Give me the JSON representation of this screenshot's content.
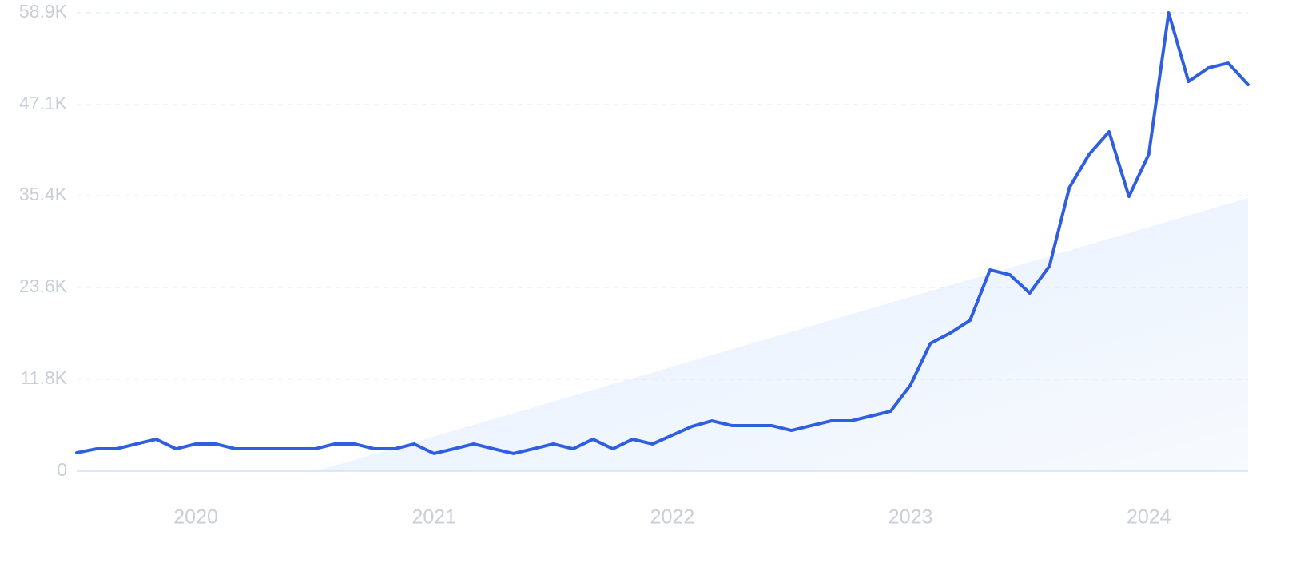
{
  "chart_data": {
    "type": "line",
    "color": "#2f5fe0",
    "categories": [
      null,
      null,
      null,
      null,
      null,
      null,
      "2020",
      null,
      null,
      null,
      null,
      null,
      null,
      null,
      null,
      null,
      null,
      null,
      "2021",
      null,
      null,
      null,
      null,
      null,
      null,
      null,
      null,
      null,
      null,
      null,
      "2022",
      null,
      null,
      null,
      null,
      null,
      null,
      null,
      null,
      null,
      null,
      null,
      "2023",
      null,
      null,
      null,
      null,
      null,
      null,
      null,
      null,
      null,
      null,
      null,
      "2024",
      null,
      null,
      null,
      null,
      null
    ],
    "values": [
      2360,
      2870,
      2870,
      3490,
      4100,
      2870,
      3490,
      3490,
      2870,
      2870,
      2870,
      2870,
      2870,
      3490,
      3490,
      2870,
      2870,
      3490,
      2260,
      2870,
      3490,
      2870,
      2260,
      2870,
      3490,
      2870,
      4100,
      2870,
      4100,
      3490,
      4620,
      5750,
      6460,
      5850,
      5850,
      5850,
      5230,
      5850,
      6460,
      6460,
      7080,
      7700,
      11080,
      16420,
      17750,
      19390,
      25860,
      25240,
      22880,
      26370,
      36420,
      40730,
      43610,
      35290,
      40730,
      58900,
      50070,
      51810,
      52430,
      49660
    ],
    "ylim": [
      0,
      58900
    ],
    "yticks": [
      0,
      {
        "value": 11800,
        "label": "11.8K"
      },
      {
        "value": 23600,
        "label": "23.6K"
      },
      {
        "value": 35400,
        "label": "35.4K"
      },
      {
        "value": 47100,
        "label": "47.1K"
      },
      {
        "value": 58900,
        "label": "58.9K"
      }
    ],
    "grid": true
  }
}
